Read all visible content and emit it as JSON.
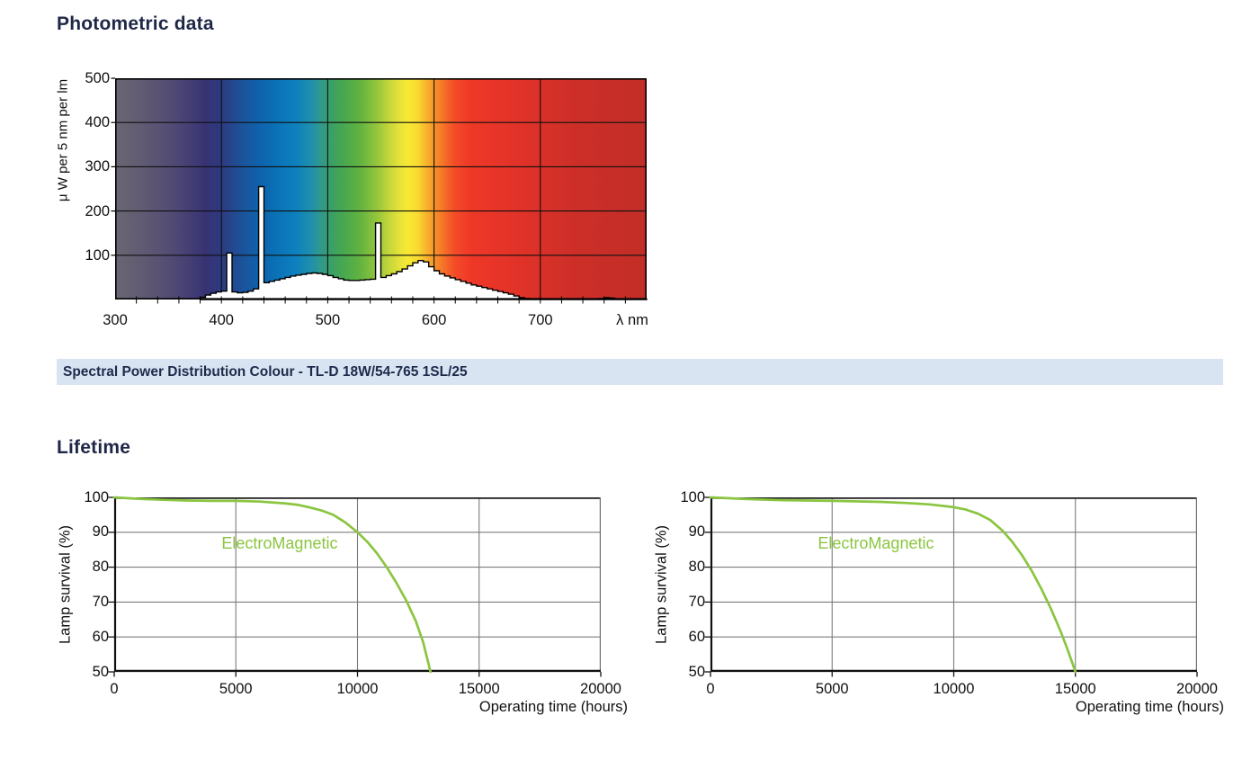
{
  "photometric": {
    "title": "Photometric data"
  },
  "lifetime": {
    "title": "Lifetime"
  },
  "colors": {
    "heading": "#1f2747",
    "caption_bg": "#d9e4f3",
    "accent_green": "#8bc540"
  },
  "chart_data": [
    {
      "id": "spectral",
      "type": "area",
      "title": "Spectral Power Distribution Colour - TL-D 18W/54-765 1SL/25",
      "xlabel": "λ nm",
      "ylabel": "μ W per 5 nm per lm",
      "xlim": [
        300,
        800
      ],
      "ylim": [
        0,
        500
      ],
      "x_ticks": [
        300,
        400,
        500,
        600,
        700
      ],
      "y_ticks": [
        100,
        200,
        300,
        400,
        500
      ],
      "minor_tick_step_nm": 20,
      "grid": true,
      "x_start": 380,
      "bin_nm": 5,
      "values": [
        5,
        10,
        14,
        17,
        19,
        105,
        17,
        15,
        16,
        19,
        24,
        255,
        38,
        41,
        44,
        47,
        50,
        53,
        55,
        57,
        59,
        60,
        59,
        57,
        54,
        50,
        47,
        44,
        43,
        43,
        44,
        45,
        46,
        173,
        50,
        54,
        58,
        63,
        69,
        76,
        83,
        88,
        85,
        74,
        65,
        58,
        53,
        49,
        45,
        41,
        37,
        33,
        30,
        27,
        24,
        21,
        18,
        15,
        12,
        8,
        4,
        2,
        1,
        1,
        1,
        1,
        1,
        1,
        1,
        1,
        1,
        1,
        1,
        1,
        1,
        2,
        4,
        3,
        1,
        1,
        1,
        1,
        1,
        1
      ],
      "curve_fill": "#ffffff",
      "curve_stroke": "#000000",
      "spectrum_gradient": [
        {
          "offset": 0,
          "color": "#6a6772"
        },
        {
          "offset": 0.06,
          "color": "#5e5872"
        },
        {
          "offset": 0.1,
          "color": "#534d74"
        },
        {
          "offset": 0.14,
          "color": "#443f74"
        },
        {
          "offset": 0.17,
          "color": "#373373"
        },
        {
          "offset": 0.2,
          "color": "#2d3a80"
        },
        {
          "offset": 0.23,
          "color": "#1f4e95"
        },
        {
          "offset": 0.27,
          "color": "#0f62ab"
        },
        {
          "offset": 0.3,
          "color": "#0a70b5"
        },
        {
          "offset": 0.34,
          "color": "#0d80bf"
        },
        {
          "offset": 0.37,
          "color": "#2090ab"
        },
        {
          "offset": 0.385,
          "color": "#2f988f"
        },
        {
          "offset": 0.41,
          "color": "#3ca163"
        },
        {
          "offset": 0.43,
          "color": "#47a84f"
        },
        {
          "offset": 0.46,
          "color": "#61b241"
        },
        {
          "offset": 0.49,
          "color": "#8fc43c"
        },
        {
          "offset": 0.515,
          "color": "#c3d63a"
        },
        {
          "offset": 0.535,
          "color": "#e6e23a"
        },
        {
          "offset": 0.55,
          "color": "#f7e934"
        },
        {
          "offset": 0.57,
          "color": "#f8d930"
        },
        {
          "offset": 0.585,
          "color": "#f8b52c"
        },
        {
          "offset": 0.6,
          "color": "#f7952a"
        },
        {
          "offset": 0.62,
          "color": "#f56e27"
        },
        {
          "offset": 0.64,
          "color": "#f34a28"
        },
        {
          "offset": 0.67,
          "color": "#ef3827"
        },
        {
          "offset": 0.72,
          "color": "#e73428"
        },
        {
          "offset": 0.8,
          "color": "#da3128"
        },
        {
          "offset": 0.86,
          "color": "#cd2f28"
        },
        {
          "offset": 1,
          "color": "#c22e27"
        }
      ]
    },
    {
      "id": "lifetime-left",
      "type": "line",
      "title": "",
      "xlabel": "Operating time (hours)",
      "ylabel": "Lamp survival (%)",
      "xlim": [
        0,
        20000
      ],
      "ylim": [
        50,
        100
      ],
      "x_ticks": [
        0,
        5000,
        10000,
        15000,
        20000
      ],
      "y_ticks": [
        100,
        90,
        80,
        70,
        60,
        50
      ],
      "grid": true,
      "series": [
        {
          "name": "ElectroMagnetic",
          "color": "#8bc540",
          "label_pos": [
            6800,
            86.5
          ],
          "points": [
            [
              0,
              100
            ],
            [
              1000,
              99.6
            ],
            [
              2000,
              99.3
            ],
            [
              3000,
              99.1
            ],
            [
              4000,
              99
            ],
            [
              5000,
              99
            ],
            [
              6000,
              98.8
            ],
            [
              7000,
              98.3
            ],
            [
              7500,
              97.9
            ],
            [
              8000,
              97.2
            ],
            [
              8500,
              96.3
            ],
            [
              9000,
              95
            ],
            [
              9500,
              92.8
            ],
            [
              10000,
              90
            ],
            [
              10400,
              87.3
            ],
            [
              10800,
              84
            ],
            [
              11200,
              80
            ],
            [
              11600,
              75.5
            ],
            [
              12000,
              70.5
            ],
            [
              12400,
              64.5
            ],
            [
              12700,
              58.5
            ],
            [
              13000,
              50
            ]
          ]
        }
      ]
    },
    {
      "id": "lifetime-right",
      "type": "line",
      "title": "",
      "xlabel": "Operating time (hours)",
      "ylabel": "Lamp survival (%)",
      "xlim": [
        0,
        20000
      ],
      "ylim": [
        50,
        100
      ],
      "x_ticks": [
        0,
        5000,
        10000,
        15000,
        20000
      ],
      "y_ticks": [
        100,
        90,
        80,
        70,
        60,
        50
      ],
      "grid": true,
      "series": [
        {
          "name": "ElectroMagnetic",
          "color": "#8bc540",
          "label_pos": [
            6800,
            86.5
          ],
          "points": [
            [
              0,
              100
            ],
            [
              1500,
              99.5
            ],
            [
              3000,
              99.2
            ],
            [
              5000,
              99
            ],
            [
              7000,
              98.7
            ],
            [
              8000,
              98.4
            ],
            [
              9000,
              98
            ],
            [
              10000,
              97.2
            ],
            [
              10500,
              96.5
            ],
            [
              11000,
              95.3
            ],
            [
              11500,
              93.5
            ],
            [
              12000,
              90.5
            ],
            [
              12400,
              87.3
            ],
            [
              12800,
              83.5
            ],
            [
              13200,
              79
            ],
            [
              13600,
              73.8
            ],
            [
              14000,
              68
            ],
            [
              14400,
              61.5
            ],
            [
              14700,
              56
            ],
            [
              15000,
              50
            ]
          ]
        }
      ]
    }
  ]
}
